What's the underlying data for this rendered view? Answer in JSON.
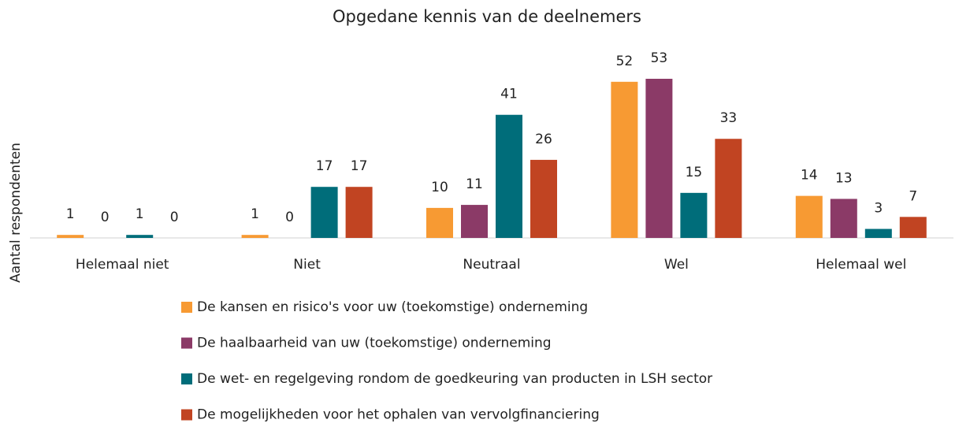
{
  "chart_data": {
    "type": "bar",
    "title": "Opgedane kennis van de deelnemers",
    "y_label": "Aantal respondenten",
    "categories": [
      "Helemaal niet",
      "Niet",
      "Neutraal",
      "Wel",
      "Helemaal wel"
    ],
    "series": [
      {
        "name": "De kansen en risico's voor uw (toekomstige) onderneming",
        "color": "#f79a33",
        "values": [
          1,
          1,
          10,
          52,
          14
        ]
      },
      {
        "name": "De haalbaarheid van uw (toekomstige) onderneming",
        "color": "#8b3a67",
        "values": [
          0,
          0,
          11,
          53,
          13
        ]
      },
      {
        "name": "De wet- en regelgeving rondom de goedkeuring van producten in LSH sector",
        "color": "#006d7a",
        "values": [
          1,
          17,
          41,
          15,
          3
        ]
      },
      {
        "name": "De mogelijkheden voor het ophalen van vervolgfinanciering",
        "color": "#c14422",
        "values": [
          0,
          17,
          26,
          33,
          7
        ]
      }
    ]
  }
}
